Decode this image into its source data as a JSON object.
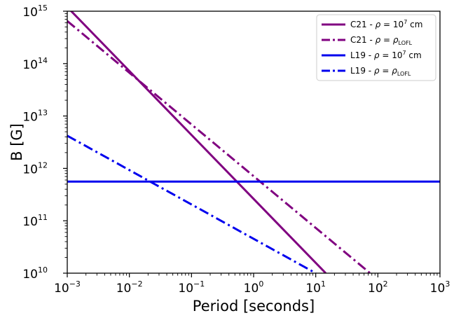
{
  "chart_data": {
    "type": "line",
    "xlabel": "Period [seconds]",
    "ylabel": "B [G]",
    "xscale": "log",
    "yscale": "log",
    "xlim": [
      0.001,
      1000
    ],
    "ylim": [
      10000000000.0,
      1000000000000000.0
    ],
    "x_tick_labels": [
      {
        "base": "10",
        "exp": "−3"
      },
      {
        "base": "10",
        "exp": "−2"
      },
      {
        "base": "10",
        "exp": "−1"
      },
      {
        "base": "10",
        "exp": "0"
      },
      {
        "base": "10",
        "exp": "1"
      },
      {
        "base": "10",
        "exp": "2"
      },
      {
        "base": "10",
        "exp": "3"
      }
    ],
    "y_tick_labels": [
      {
        "base": "10",
        "exp": "10"
      },
      {
        "base": "10",
        "exp": "11"
      },
      {
        "base": "10",
        "exp": "12"
      },
      {
        "base": "10",
        "exp": "13"
      },
      {
        "base": "10",
        "exp": "14"
      },
      {
        "base": "10",
        "exp": "15"
      }
    ],
    "grid": false,
    "legend_position": "top-right",
    "series": [
      {
        "legend": {
          "prefix": "C21 - ",
          "rho": "ρ",
          "eq": " = 10",
          "sup": "7",
          "unit": " cm",
          "sub": ""
        },
        "color": "#800080",
        "style": "solid",
        "x": [
          0.001,
          14.5
        ],
        "y": [
          1200000000000000.0,
          10000000000.0
        ]
      },
      {
        "legend": {
          "prefix": "C21 - ",
          "rho": "ρ",
          "eq": " = ",
          "sup": "",
          "unit": "ρ",
          "sub": "LOFL"
        },
        "color": "#800080",
        "style": "dashdot",
        "x": [
          0.001,
          75
        ],
        "y": [
          650000000000000.0,
          10000000000.0
        ]
      },
      {
        "legend": {
          "prefix": "L19 - ",
          "rho": "ρ",
          "eq": " = 10",
          "sup": "7",
          "unit": " cm",
          "sub": ""
        },
        "color": "#0000ee",
        "style": "solid",
        "x": [
          0.001,
          1000
        ],
        "y": [
          560000000000.0,
          560000000000.0
        ]
      },
      {
        "legend": {
          "prefix": "L19 - ",
          "rho": "ρ",
          "eq": " = ",
          "sup": "",
          "unit": "ρ",
          "sub": "LOFL"
        },
        "color": "#0000ee",
        "style": "dashdot",
        "x": [
          0.001,
          10
        ],
        "y": [
          4200000000000.0,
          10000000000.0
        ]
      }
    ]
  }
}
